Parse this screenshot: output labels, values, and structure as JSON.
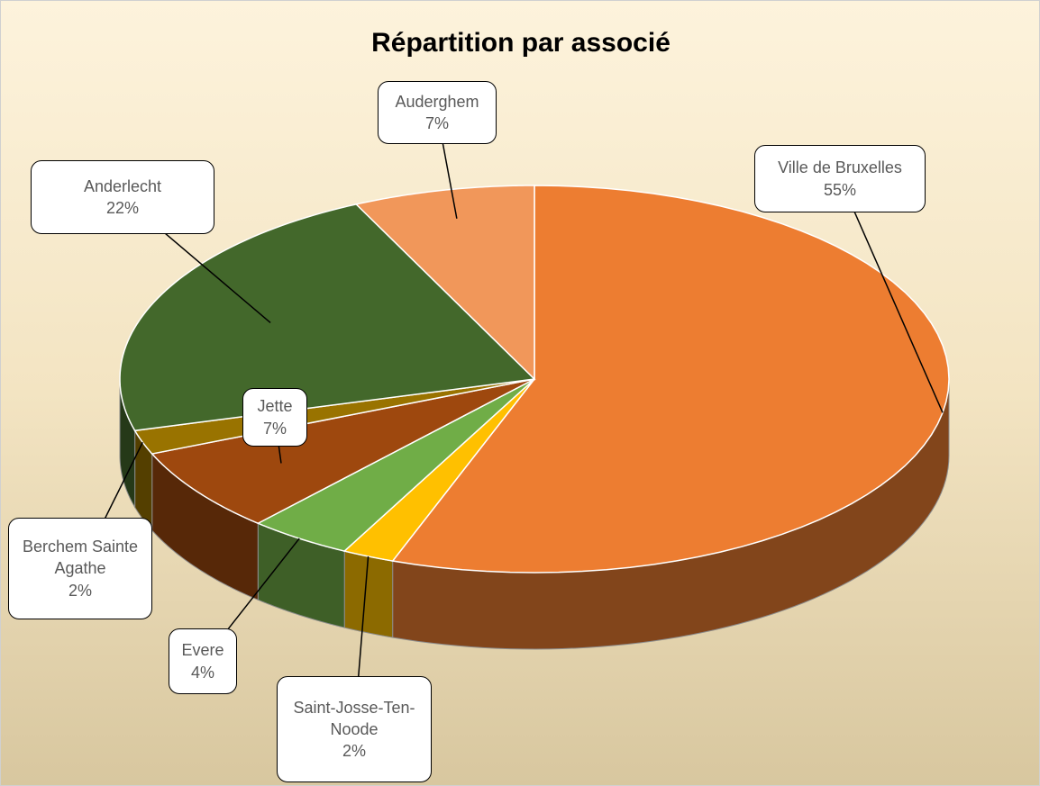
{
  "chart_data": {
    "type": "pie3d",
    "title": "Répartition par associé",
    "categories": [
      "Ville de Bruxelles",
      "Saint-Josse-Ten-Noode",
      "Evere",
      "Jette",
      "Berchem Sainte Agathe",
      "Anderlecht",
      "Auderghem"
    ],
    "values": [
      55,
      2,
      4,
      7,
      2,
      22,
      7
    ],
    "value_labels": [
      "55%",
      "2%",
      "4%",
      "7%",
      "2%",
      "22%",
      "7%"
    ],
    "colors": [
      "#ED7D31",
      "#FFC000",
      "#70AD47",
      "#9E480E",
      "#997300",
      "#43682B",
      "#F1975A"
    ]
  }
}
